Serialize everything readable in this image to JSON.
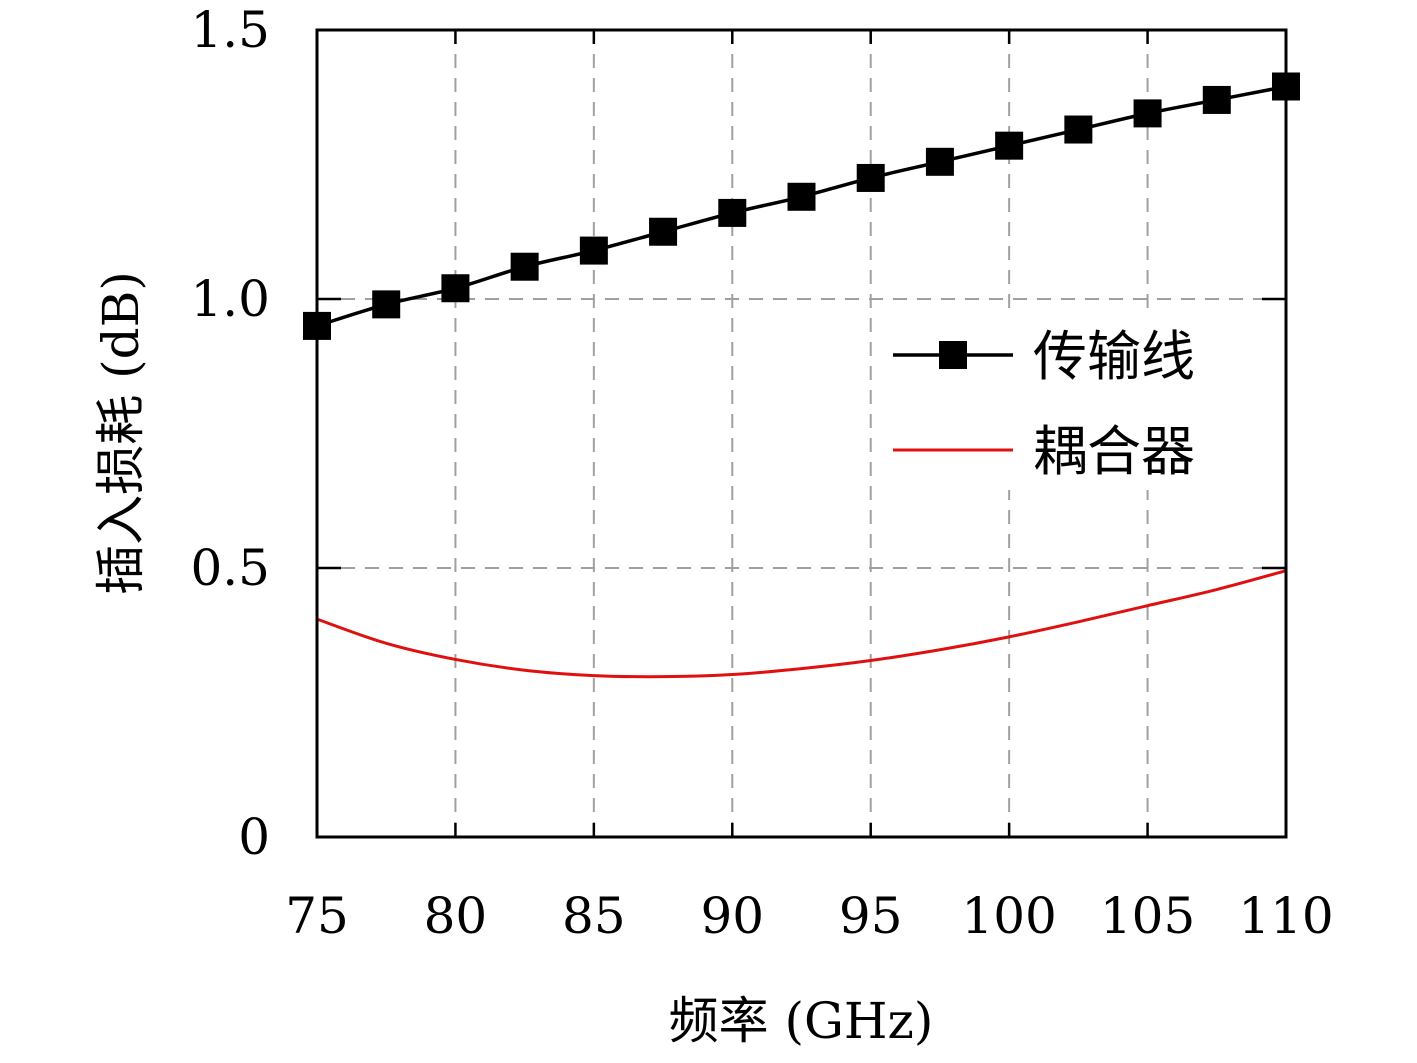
{
  "chart_data": {
    "type": "line",
    "xlabel": "频率 (GHz)",
    "ylabel": "插入损耗 (dB)",
    "xlim": [
      75,
      110
    ],
    "ylim": [
      0,
      1.5
    ],
    "x_ticks": [
      75,
      80,
      85,
      90,
      95,
      100,
      105,
      110
    ],
    "x_tick_labels": [
      "75",
      "80",
      "85",
      "90",
      "95",
      "100",
      "105",
      "110"
    ],
    "y_ticks": [
      0,
      0.5,
      1.0,
      1.5
    ],
    "y_tick_labels": [
      "0",
      "0.5",
      "1.0",
      "1.5"
    ],
    "grid": true,
    "legend_position": "right",
    "series": [
      {
        "name": "传输线",
        "color": "#000000",
        "marker": "square",
        "x": [
          75,
          77.5,
          80,
          82.5,
          85,
          87.5,
          90,
          92.5,
          95,
          97.5,
          100,
          102.5,
          105,
          107.5,
          110
        ],
        "y": [
          0.95,
          0.99,
          1.02,
          1.06,
          1.09,
          1.125,
          1.16,
          1.19,
          1.225,
          1.255,
          1.285,
          1.315,
          1.345,
          1.37,
          1.395
        ]
      },
      {
        "name": "耦合器",
        "color": "#e01010",
        "marker": "none",
        "x": [
          75,
          77.5,
          80,
          82.5,
          85,
          87.5,
          90,
          92.5,
          95,
          97.5,
          100,
          102.5,
          105,
          107.5,
          110
        ],
        "y": [
          0.405,
          0.36,
          0.33,
          0.31,
          0.3,
          0.298,
          0.302,
          0.313,
          0.328,
          0.348,
          0.372,
          0.4,
          0.43,
          0.46,
          0.495
        ]
      }
    ]
  }
}
